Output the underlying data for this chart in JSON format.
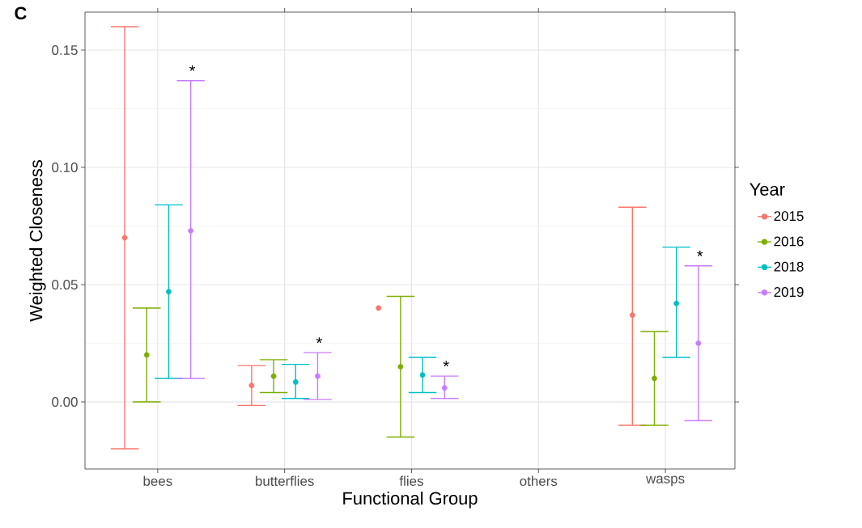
{
  "chart_data": {
    "type": "scatter",
    "title": "C",
    "xlabel": "Functional Group",
    "ylabel": "Weighted Closeness",
    "legend_title": "Year",
    "categories": [
      "bees",
      "butterflies",
      "flies",
      "others",
      "wasps"
    ],
    "series": [
      {
        "name": "2015",
        "color": "#f8766d",
        "values": [
          0.07,
          0.007,
          0.04,
          null,
          0.037
        ],
        "errors": [
          [
            -0.02,
            0.16
          ],
          [
            -0.0015,
            0.0155
          ],
          null,
          null,
          [
            -0.01,
            0.083
          ]
        ]
      },
      {
        "name": "2016",
        "color": "#7cae00",
        "values": [
          0.02,
          0.011,
          0.015,
          null,
          0.01
        ],
        "errors": [
          [
            0.0,
            0.04
          ],
          [
            0.004,
            0.018
          ],
          [
            -0.015,
            0.045
          ],
          null,
          [
            -0.01,
            0.03
          ]
        ]
      },
      {
        "name": "2018",
        "color": "#00bfc4",
        "values": [
          0.047,
          0.0085,
          0.0115,
          null,
          0.042
        ],
        "errors": [
          [
            0.01,
            0.084
          ],
          [
            0.0015,
            0.016
          ],
          [
            0.004,
            0.019
          ],
          null,
          [
            0.019,
            0.066
          ]
        ]
      },
      {
        "name": "2019",
        "color": "#c77cff",
        "values": [
          0.073,
          0.011,
          0.006,
          null,
          0.025
        ],
        "errors": [
          [
            0.01,
            0.137
          ],
          [
            0.001,
            0.021
          ],
          [
            0.0015,
            0.011
          ],
          null,
          [
            -0.008,
            0.058
          ]
        ]
      }
    ],
    "ylim": [
      -0.0286,
      0.1662
    ],
    "yticks": [
      {
        "value": 0,
        "label": "0.00"
      },
      {
        "value": 0.05,
        "label": "0.05"
      },
      {
        "value": 0.1,
        "label": "0.10"
      },
      {
        "value": 0.15,
        "label": "0.15"
      }
    ],
    "annotations": [
      "*",
      "*",
      "*",
      "*"
    ],
    "grid": true,
    "legend": "right",
    "marker": "circle"
  }
}
